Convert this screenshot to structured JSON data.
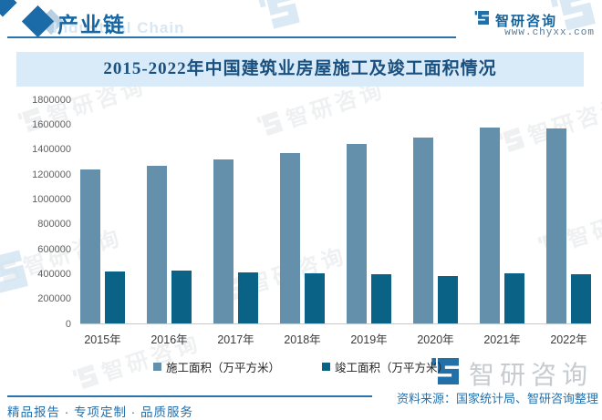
{
  "header": {
    "section_title": "产业链",
    "section_title_ghost": "Industrial Chain",
    "brand_name": "智研咨询",
    "brand_url": "www.chyxx.com"
  },
  "chart_data": {
    "type": "bar",
    "title": "2015-2022年中国建筑业房屋施工及竣工面积情况",
    "categories": [
      "2015年",
      "2016年",
      "2017年",
      "2018年",
      "2019年",
      "2020年",
      "2021年",
      "2022年"
    ],
    "series": [
      {
        "name": "施工面积（万平方米）",
        "color": "#6590ac",
        "values": [
          1240000,
          1265000,
          1317000,
          1370000,
          1441000,
          1494000,
          1576000,
          1565000
        ]
      },
      {
        "name": "竣工面积（万平方米）",
        "color": "#0a6287",
        "values": [
          420000,
          421000,
          412000,
          403000,
          398000,
          384000,
          404000,
          396000
        ]
      }
    ],
    "ylim": [
      0,
      1800000
    ],
    "yticks": [
      0,
      200000,
      400000,
      600000,
      800000,
      1000000,
      1200000,
      1400000,
      1600000,
      1800000
    ],
    "grid": false,
    "legend_position": "bottom"
  },
  "watermark": {
    "brand": "智研咨询"
  },
  "footer": {
    "left": "精品报告 · 专项定制 · 品质服务",
    "source": "资料来源：国家统计局、智研咨询整理"
  },
  "colors": {
    "bar_construction": "#6590ac",
    "bar_completion": "#0a6287",
    "title_bg": "#d9ebf8",
    "title_text": "#19507f",
    "accent_blue": "#2b72ab",
    "footer_text": "#2471ac"
  }
}
